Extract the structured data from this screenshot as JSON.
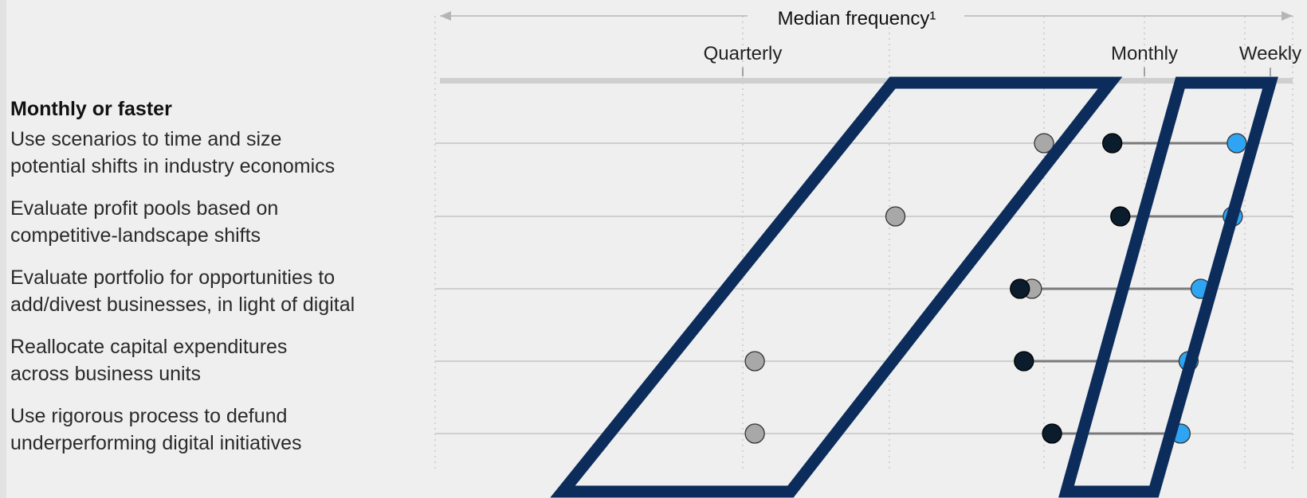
{
  "chart_data": {
    "type": "dot-plot",
    "axis_title": "Median frequency¹",
    "x_ticks": [
      "Quarterly",
      "Monthly",
      "Weekly"
    ],
    "group_label": "Monthly or faster",
    "categories": [
      "Use scenarios to time and size\npotential shifts in industry economics",
      "Evaluate profit pools based on\ncompetitive-landscape shifts",
      "Evaluate portfolio for opportunities to\nadd/divest businesses, in light of digital",
      "Reallocate capital expenditures\nacross business units",
      "Use rigorous process to defund\nunderperforming digital initiatives"
    ],
    "series": [
      {
        "color": "#a8a8a8",
        "values": [
          0.75,
          0.38,
          0.72,
          0.03,
          0.03
        ]
      },
      {
        "color": "#0b1c2c",
        "values": [
          0.92,
          0.94,
          0.69,
          0.7,
          0.77
        ]
      },
      {
        "color": "#2fa4f2",
        "values": [
          1.23,
          1.22,
          1.14,
          1.11,
          1.09
        ]
      }
    ],
    "connector_color": "#7a7a7a",
    "highlight_color": "#0c2d5b",
    "grid": true
  }
}
